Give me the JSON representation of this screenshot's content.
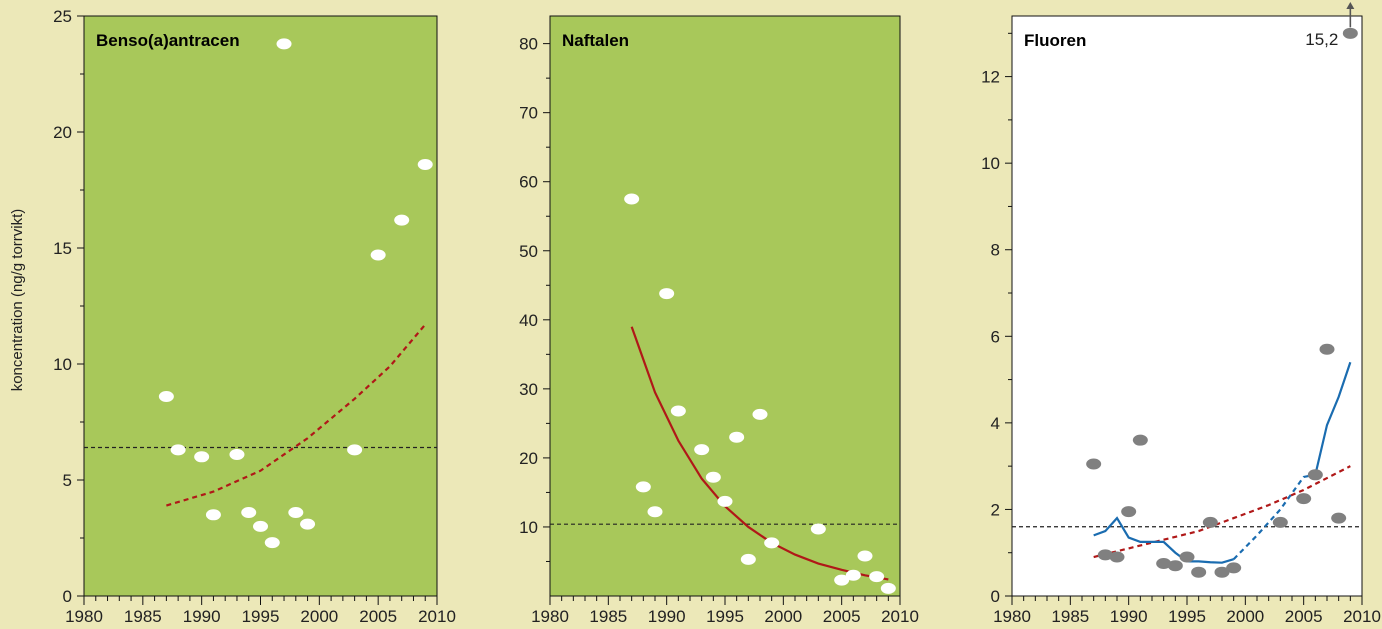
{
  "colors": {
    "page_bg": "#ece8b8",
    "green_plot_bg": "#a8c85a",
    "white_plot_bg": "#ffffff",
    "white_marker": "#ffffff",
    "grey_marker": "#808080",
    "trend_red": "#b01818",
    "smooth_blue": "#1a6cb0",
    "reference_line": "#222222"
  },
  "ylabel": "koncentration (ng/g torrvikt)",
  "chart_data": [
    {
      "type": "scatter",
      "title": "Benso(a)antracen",
      "xlim": [
        1980,
        2010
      ],
      "ylim": [
        0,
        25
      ],
      "x_ticks": [
        1980,
        1985,
        1990,
        1995,
        2000,
        2005,
        2010
      ],
      "y_ticks": [
        0,
        5,
        10,
        15,
        20,
        25
      ],
      "points": [
        [
          1987,
          8.6
        ],
        [
          1988,
          6.3
        ],
        [
          1990,
          6.0
        ],
        [
          1991,
          3.5
        ],
        [
          1993,
          6.1
        ],
        [
          1994,
          3.6
        ],
        [
          1995,
          3.0
        ],
        [
          1996,
          2.3
        ],
        [
          1997,
          23.8
        ],
        [
          1998,
          3.6
        ],
        [
          1999,
          3.1
        ],
        [
          2003,
          6.3
        ],
        [
          2005,
          14.7
        ],
        [
          2007,
          16.2
        ],
        [
          2009,
          18.6
        ]
      ],
      "trend": {
        "style": "dashed",
        "points": [
          [
            1987,
            3.9
          ],
          [
            1991,
            4.5
          ],
          [
            1995,
            5.4
          ],
          [
            1999,
            6.8
          ],
          [
            2003,
            8.5
          ],
          [
            2006,
            9.9
          ],
          [
            2009,
            11.7
          ]
        ]
      },
      "reference_line": 6.4,
      "grid": false
    },
    {
      "type": "scatter",
      "title": "Naftalen",
      "xlim": [
        1980,
        2010
      ],
      "ylim": [
        0,
        84
      ],
      "x_ticks": [
        1980,
        1985,
        1990,
        1995,
        2000,
        2005,
        2010
      ],
      "y_ticks": [
        10,
        20,
        30,
        40,
        50,
        60,
        70,
        80
      ],
      "points": [
        [
          1987,
          57.5
        ],
        [
          1988,
          15.8
        ],
        [
          1989,
          12.2
        ],
        [
          1990,
          43.8
        ],
        [
          1991,
          26.8
        ],
        [
          1993,
          21.2
        ],
        [
          1994,
          17.2
        ],
        [
          1995,
          13.7
        ],
        [
          1996,
          23.0
        ],
        [
          1997,
          5.3
        ],
        [
          1998,
          26.3
        ],
        [
          1999,
          7.7
        ],
        [
          2003,
          9.7
        ],
        [
          2005,
          2.3
        ],
        [
          2006,
          3.0
        ],
        [
          2007,
          5.8
        ],
        [
          2008,
          2.8
        ],
        [
          2009,
          1.1
        ]
      ],
      "trend": {
        "style": "solid",
        "points": [
          [
            1987,
            39.0
          ],
          [
            1989,
            29.5
          ],
          [
            1991,
            22.5
          ],
          [
            1993,
            17.0
          ],
          [
            1995,
            13.0
          ],
          [
            1997,
            10.0
          ],
          [
            1999,
            7.7
          ],
          [
            2001,
            6.0
          ],
          [
            2003,
            4.7
          ],
          [
            2005,
            3.8
          ],
          [
            2007,
            3.0
          ],
          [
            2009,
            2.4
          ]
        ]
      },
      "reference_line": 10.4,
      "grid": false
    },
    {
      "type": "scatter",
      "title": "Fluoren",
      "annotation": "15,2",
      "xlim": [
        1980,
        2010
      ],
      "ylim": [
        0,
        13.4
      ],
      "x_ticks": [
        1980,
        1985,
        1990,
        1995,
        2000,
        2005,
        2010
      ],
      "y_ticks": [
        0,
        2,
        4,
        6,
        8,
        10,
        12
      ],
      "points": [
        [
          1987,
          3.05
        ],
        [
          1988,
          0.95
        ],
        [
          1989,
          0.9
        ],
        [
          1990,
          1.95
        ],
        [
          1991,
          3.6
        ],
        [
          1993,
          0.75
        ],
        [
          1994,
          0.7
        ],
        [
          1995,
          0.9
        ],
        [
          1996,
          0.55
        ],
        [
          1997,
          1.7
        ],
        [
          1998,
          0.55
        ],
        [
          1999,
          0.65
        ],
        [
          2003,
          1.7
        ],
        [
          2005,
          2.25
        ],
        [
          2006,
          2.8
        ],
        [
          2007,
          5.7
        ],
        [
          2008,
          1.8
        ],
        [
          2009,
          13.0
        ]
      ],
      "trend": {
        "style": "dashed",
        "points": [
          [
            1987,
            0.9
          ],
          [
            1990,
            1.1
          ],
          [
            1993,
            1.3
          ],
          [
            1996,
            1.5
          ],
          [
            1999,
            1.8
          ],
          [
            2002,
            2.1
          ],
          [
            2005,
            2.45
          ],
          [
            2009,
            3.0
          ]
        ]
      },
      "smooth": {
        "solid": [
          [
            1987,
            1.4
          ],
          [
            1988,
            1.5
          ],
          [
            1989,
            1.8
          ],
          [
            1990,
            1.35
          ],
          [
            1991,
            1.25
          ],
          [
            1992,
            1.25
          ],
          [
            1993,
            1.25
          ],
          [
            1994,
            1.0
          ],
          [
            1995,
            0.8
          ],
          [
            1996,
            0.8
          ],
          [
            1997,
            0.78
          ],
          [
            1998,
            0.77
          ],
          [
            1999,
            0.85
          ]
        ],
        "dashed": [
          [
            1999,
            0.85
          ],
          [
            2001,
            1.4
          ],
          [
            2003,
            2.0
          ],
          [
            2005,
            2.75
          ],
          [
            2006,
            2.8
          ]
        ],
        "solid_end": [
          [
            2006,
            2.8
          ],
          [
            2007,
            3.95
          ],
          [
            2008,
            4.6
          ],
          [
            2009,
            5.4
          ]
        ]
      },
      "reference_line": 1.6,
      "grid": false
    }
  ]
}
